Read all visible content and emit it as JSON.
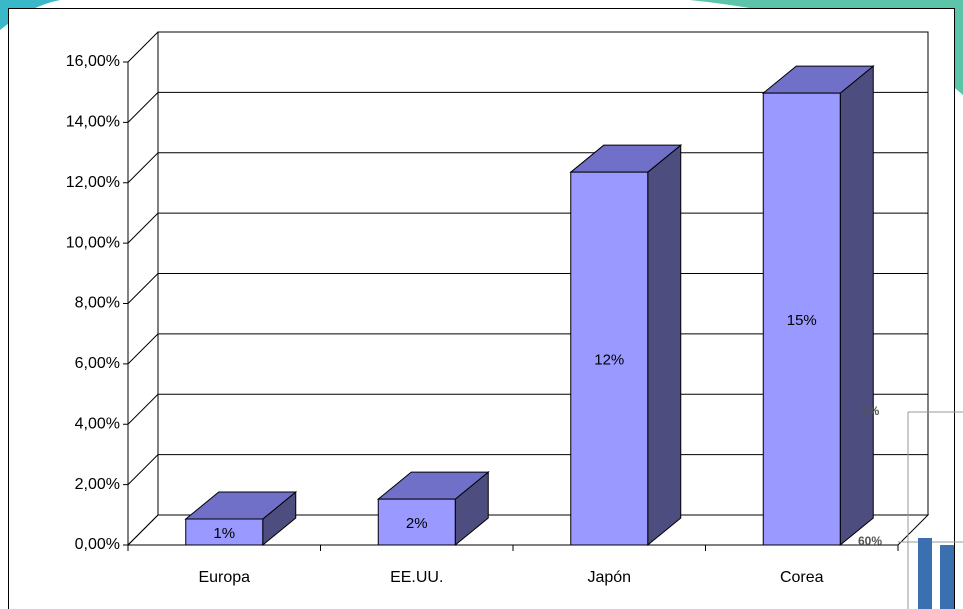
{
  "chart_data": {
    "type": "bar3d",
    "categories": [
      "Europa",
      "EE.UU.",
      "Japón",
      "Corea"
    ],
    "values": [
      0.86,
      1.52,
      12.35,
      14.97
    ],
    "value_labels": [
      "1%",
      "2%",
      "12%",
      "15%"
    ],
    "color": "#9999ff",
    "ylim": [
      0,
      16
    ],
    "yticks": [
      {
        "value": 0,
        "label": "0,00%"
      },
      {
        "value": 2,
        "label": "2,00%"
      },
      {
        "value": 4,
        "label": "4,00%"
      },
      {
        "value": 6,
        "label": "6,00%"
      },
      {
        "value": 8,
        "label": "8,00%"
      },
      {
        "value": 10,
        "label": "10,00%"
      },
      {
        "value": 12,
        "label": "12,00%"
      },
      {
        "value": 14,
        "label": "14,00%"
      },
      {
        "value": 16,
        "label": "16,00%"
      }
    ],
    "grid": true
  },
  "fragment": {
    "texts": [
      "0%",
      "60%"
    ]
  }
}
